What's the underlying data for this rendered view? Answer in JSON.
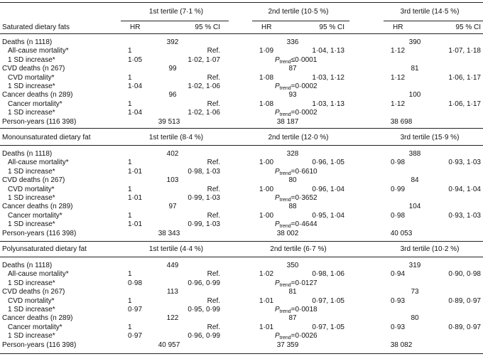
{
  "p_symbol": "P",
  "p_sub": "trend",
  "sections": [
    {
      "title": "Saturated dietary fats",
      "tertiles": [
        "1st tertile (7·1 %)",
        "2nd tertile (10·5 %)",
        "3rd tertile (14·5 %)"
      ],
      "col_labels": {
        "hr": "HR",
        "ci": "95 % CI"
      },
      "rows": [
        {
          "label": "Deaths (n 1118)",
          "counts": [
            "392",
            "336",
            "390"
          ]
        },
        {
          "label": "All-cause mortality*",
          "cells": [
            {
              "hr": "1",
              "ci": "Ref."
            },
            {
              "hr": "1·09",
              "ci": "1·04, 1·13"
            },
            {
              "hr": "1·12",
              "ci": "1·07, 1·18"
            }
          ]
        },
        {
          "label": "1 SD increase*",
          "cells": [
            {
              "hr": "1·05",
              "ci": "1·02, 1·07"
            }
          ],
          "p": "≤0·0001"
        },
        {
          "label": "CVD deaths (n 267)",
          "counts": [
            "99",
            "87",
            "81"
          ]
        },
        {
          "label": "CVD mortality*",
          "cells": [
            {
              "hr": "1",
              "ci": "Ref."
            },
            {
              "hr": "1·08",
              "ci": "1·03, 1·12"
            },
            {
              "hr": "1·12",
              "ci": "1·06, 1·17"
            }
          ]
        },
        {
          "label": "1 SD increase*",
          "cells": [
            {
              "hr": "1·04",
              "ci": "1·02, 1·06"
            }
          ],
          "p": "=0·0002"
        },
        {
          "label": "Cancer deaths (n 289)",
          "counts": [
            "96",
            "93",
            "100"
          ]
        },
        {
          "label": "Cancer mortality*",
          "cells": [
            {
              "hr": "1",
              "ci": "Ref."
            },
            {
              "hr": "1·08",
              "ci": "1·03, 1·13"
            },
            {
              "hr": "1·12",
              "ci": "1·06, 1·17"
            }
          ]
        },
        {
          "label": "1 SD increase*",
          "cells": [
            {
              "hr": "1·04",
              "ci": "1·02, 1·06"
            }
          ],
          "p": "=0·0002"
        },
        {
          "label": "Person-years (116 398)",
          "counts": [
            "39 513",
            "38 187",
            "38 698"
          ]
        }
      ]
    },
    {
      "title": "Monounsaturated dietary fat",
      "tertiles": [
        "1st tertile (8·4 %)",
        "2nd tertile (12·0 %)",
        "3rd tertile (15·9 %)"
      ],
      "rows": [
        {
          "label": "Deaths (n 1118)",
          "counts": [
            "402",
            "328",
            "388"
          ]
        },
        {
          "label": "All-cause mortality*",
          "cells": [
            {
              "hr": "1",
              "ci": "Ref."
            },
            {
              "hr": "1·00",
              "ci": "0·96, 1·05"
            },
            {
              "hr": "0·98",
              "ci": "0·93, 1·03"
            }
          ]
        },
        {
          "label": "1 SD increase*",
          "cells": [
            {
              "hr": "1·01",
              "ci": "0·98, 1·03"
            }
          ],
          "p": "=0·6610"
        },
        {
          "label": "CVD deaths (n 267)",
          "counts": [
            "103",
            "80",
            "84"
          ]
        },
        {
          "label": "CVD mortality*",
          "cells": [
            {
              "hr": "1",
              "ci": "Ref."
            },
            {
              "hr": "1·00",
              "ci": "0·96, 1·04"
            },
            {
              "hr": "0·99",
              "ci": "0·94, 1·04"
            }
          ]
        },
        {
          "label": "1 SD increase*",
          "cells": [
            {
              "hr": "1·01",
              "ci": "0·99, 1·03"
            }
          ],
          "p": "=0·3652"
        },
        {
          "label": "Cancer deaths (n 289)",
          "counts": [
            "97",
            "88",
            "104"
          ]
        },
        {
          "label": "Cancer mortality*",
          "cells": [
            {
              "hr": "1",
              "ci": "Ref."
            },
            {
              "hr": "1·00",
              "ci": "0·95, 1·04"
            },
            {
              "hr": "0·98",
              "ci": "0·93, 1·03"
            }
          ]
        },
        {
          "label": "1 SD increase*",
          "cells": [
            {
              "hr": "1·01",
              "ci": "0·99, 1·03"
            }
          ],
          "p": "=0·4644"
        },
        {
          "label": "Person-years (116 398)",
          "counts": [
            "38 343",
            "38 002",
            "40 053"
          ]
        }
      ]
    },
    {
      "title": "Polyunsaturated dietary fat",
      "tertiles": [
        "1st tertile (4·4 %)",
        "2nd tertile (6·7 %)",
        "3rd tertile (10·2 %)"
      ],
      "rows": [
        {
          "label": "Deaths (n 1118)",
          "counts": [
            "449",
            "350",
            "319"
          ]
        },
        {
          "label": "All-cause mortality*",
          "cells": [
            {
              "hr": "1",
              "ci": "Ref."
            },
            {
              "hr": "1·02",
              "ci": "0·98, 1·06"
            },
            {
              "hr": "0·94",
              "ci": "0·90, 0·98"
            }
          ]
        },
        {
          "label": "1 SD increase*",
          "cells": [
            {
              "hr": "0·98",
              "ci": "0·96, 0·99"
            }
          ],
          "p": "=0·0127"
        },
        {
          "label": "CVD deaths (n 267)",
          "counts": [
            "113",
            "81",
            "73"
          ]
        },
        {
          "label": "CVD mortality*",
          "cells": [
            {
              "hr": "1",
              "ci": "Ref."
            },
            {
              "hr": "1·01",
              "ci": "0·97, 1·05"
            },
            {
              "hr": "0·93",
              "ci": "0·89, 0·97"
            }
          ]
        },
        {
          "label": "1 SD increase*",
          "cells": [
            {
              "hr": "0·97",
              "ci": "0·95, 0·99"
            }
          ],
          "p": "=0·0018"
        },
        {
          "label": "Cancer deaths (n 289)",
          "counts": [
            "122",
            "87",
            "80"
          ]
        },
        {
          "label": "Cancer mortality*",
          "cells": [
            {
              "hr": "1",
              "ci": "Ref."
            },
            {
              "hr": "1·01",
              "ci": "0·97, 1·05"
            },
            {
              "hr": "0·93",
              "ci": "0·89, 0·97"
            }
          ]
        },
        {
          "label": "1 SD increase*",
          "cells": [
            {
              "hr": "0·97",
              "ci": "0·96, 0·99"
            }
          ],
          "p": "=0·0026"
        },
        {
          "label": "Person-years (116 398)",
          "counts": [
            "40 957",
            "37 359",
            "38 082"
          ]
        }
      ]
    }
  ]
}
